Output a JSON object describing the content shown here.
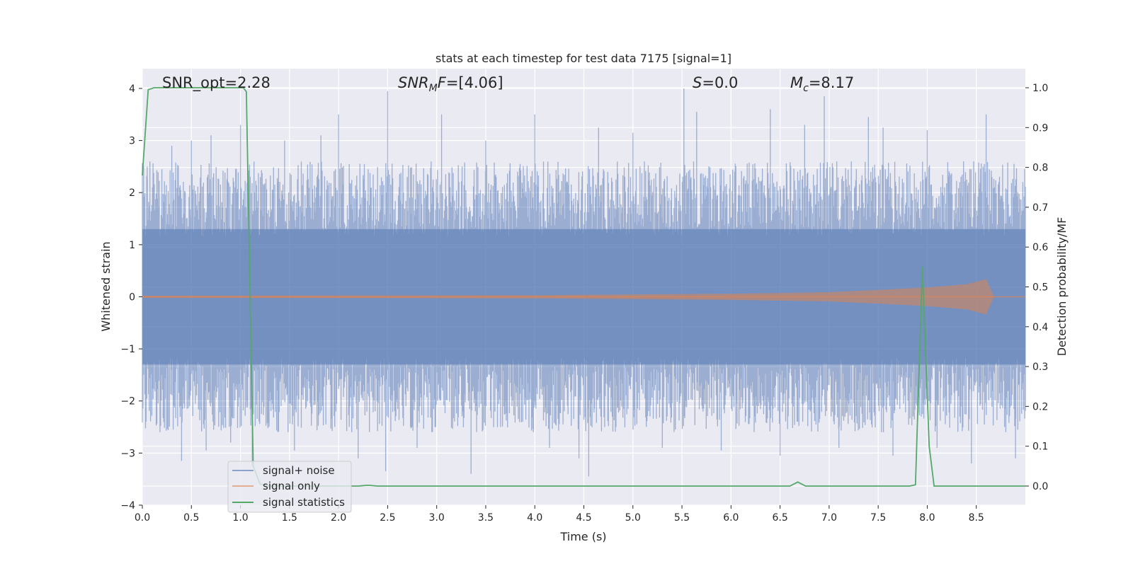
{
  "chart_data": {
    "type": "line",
    "title": "stats at each timestep for test data 7175 [signal=1]",
    "xlabel": "Time (s)",
    "ylabel": "Whitened strain",
    "y2label": "Detection probability/MF",
    "xlim": [
      0,
      9.0
    ],
    "ylim": [
      -4,
      4.38
    ],
    "y2lim": [
      -0.048,
      1.048
    ],
    "x_ticks": [
      "0.0",
      "0.5",
      "1.0",
      "1.5",
      "2.0",
      "2.5",
      "3.0",
      "3.5",
      "4.0",
      "4.5",
      "5.0",
      "5.5",
      "6.0",
      "6.5",
      "7.0",
      "7.5",
      "8.0",
      "8.5"
    ],
    "y_ticks": [
      "−4",
      "−3",
      "−2",
      "−1",
      "0",
      "1",
      "2",
      "3",
      "4"
    ],
    "y2_ticks": [
      "0.0",
      "0.1",
      "0.2",
      "0.3",
      "0.4",
      "0.5",
      "0.6",
      "0.7",
      "0.8",
      "0.9",
      "1.0"
    ],
    "grid": true,
    "legend_position": "lower-left",
    "annotations": [
      {
        "id": "snr-opt",
        "text": "SNR_opt=2.28"
      },
      {
        "id": "snr-mf",
        "text": "SNR_MF=[4.06]"
      },
      {
        "id": "s",
        "text": "S=0.0"
      },
      {
        "id": "mc",
        "text": "M_c=8.17"
      }
    ],
    "series": [
      {
        "name": "signal+ noise",
        "color": "#4c72b0",
        "axis": "left",
        "description_free": true,
        "band_min": -2.6,
        "band_max": 2.6,
        "peaks": [
          {
            "x": 0.05,
            "y": 2.5
          },
          {
            "x": 0.18,
            "y": -2.6
          },
          {
            "x": 0.3,
            "y": 2.9
          },
          {
            "x": 0.4,
            "y": -3.15
          },
          {
            "x": 0.5,
            "y": 3.0
          },
          {
            "x": 0.65,
            "y": -2.95
          },
          {
            "x": 0.7,
            "y": 3.1
          },
          {
            "x": 0.9,
            "y": -2.8
          },
          {
            "x": 1.0,
            "y": 3.3
          },
          {
            "x": 1.12,
            "y": -3.25
          },
          {
            "x": 1.45,
            "y": 3.0
          },
          {
            "x": 1.55,
            "y": -2.95
          },
          {
            "x": 1.82,
            "y": 3.1
          },
          {
            "x": 2.0,
            "y": 3.5
          },
          {
            "x": 2.2,
            "y": -3.1
          },
          {
            "x": 2.5,
            "y": 3.95
          },
          {
            "x": 2.48,
            "y": -3.35
          },
          {
            "x": 2.8,
            "y": -2.9
          },
          {
            "x": 3.05,
            "y": 3.5
          },
          {
            "x": 3.35,
            "y": -3.4
          },
          {
            "x": 3.5,
            "y": 3.0
          },
          {
            "x": 4.0,
            "y": 3.5
          },
          {
            "x": 4.15,
            "y": -2.9
          },
          {
            "x": 4.45,
            "y": -3.1
          },
          {
            "x": 4.55,
            "y": -3.45
          },
          {
            "x": 4.65,
            "y": 3.25
          },
          {
            "x": 5.0,
            "y": 3.15
          },
          {
            "x": 5.3,
            "y": -2.9
          },
          {
            "x": 5.52,
            "y": 4.0
          },
          {
            "x": 5.65,
            "y": 3.55
          },
          {
            "x": 5.9,
            "y": -2.95
          },
          {
            "x": 6.4,
            "y": 3.6
          },
          {
            "x": 6.5,
            "y": -3.05
          },
          {
            "x": 6.75,
            "y": 3.3
          },
          {
            "x": 6.95,
            "y": 3.85
          },
          {
            "x": 7.1,
            "y": -2.9
          },
          {
            "x": 7.4,
            "y": 3.45
          },
          {
            "x": 7.55,
            "y": 3.25
          },
          {
            "x": 7.65,
            "y": -3.05
          },
          {
            "x": 8.0,
            "y": 3.2
          },
          {
            "x": 8.1,
            "y": -2.9
          },
          {
            "x": 8.45,
            "y": -3.2
          },
          {
            "x": 8.6,
            "y": 3.5
          },
          {
            "x": 8.9,
            "y": -3.1
          }
        ]
      },
      {
        "name": "signal only",
        "color": "#dd8452",
        "axis": "left",
        "envelope": [
          {
            "x": 0.0,
            "amp": 0.02
          },
          {
            "x": 4.0,
            "amp": 0.03
          },
          {
            "x": 6.0,
            "amp": 0.06
          },
          {
            "x": 7.0,
            "amp": 0.09
          },
          {
            "x": 7.5,
            "amp": 0.13
          },
          {
            "x": 8.0,
            "amp": 0.18
          },
          {
            "x": 8.4,
            "amp": 0.24
          },
          {
            "x": 8.6,
            "amp": 0.34
          },
          {
            "x": 8.68,
            "amp": 0.0
          },
          {
            "x": 9.0,
            "amp": 0.0
          }
        ]
      },
      {
        "name": "signal statistics",
        "color": "#55a868",
        "axis": "right",
        "points": [
          {
            "x": 0.0,
            "y": 0.78
          },
          {
            "x": 0.06,
            "y": 0.995
          },
          {
            "x": 0.12,
            "y": 1.0
          },
          {
            "x": 1.03,
            "y": 1.0
          },
          {
            "x": 1.06,
            "y": 0.99
          },
          {
            "x": 1.13,
            "y": 0.05
          },
          {
            "x": 1.2,
            "y": 0.005
          },
          {
            "x": 1.3,
            "y": 0.0
          },
          {
            "x": 2.2,
            "y": 0.0
          },
          {
            "x": 2.3,
            "y": 0.002
          },
          {
            "x": 2.4,
            "y": 0.0
          },
          {
            "x": 6.6,
            "y": 0.0
          },
          {
            "x": 6.68,
            "y": 0.01
          },
          {
            "x": 6.76,
            "y": 0.0
          },
          {
            "x": 7.82,
            "y": 0.0
          },
          {
            "x": 7.88,
            "y": 0.003
          },
          {
            "x": 7.95,
            "y": 0.55
          },
          {
            "x": 8.02,
            "y": 0.1
          },
          {
            "x": 8.07,
            "y": 0.0
          },
          {
            "x": 9.0,
            "y": 0.0
          }
        ]
      }
    ]
  }
}
